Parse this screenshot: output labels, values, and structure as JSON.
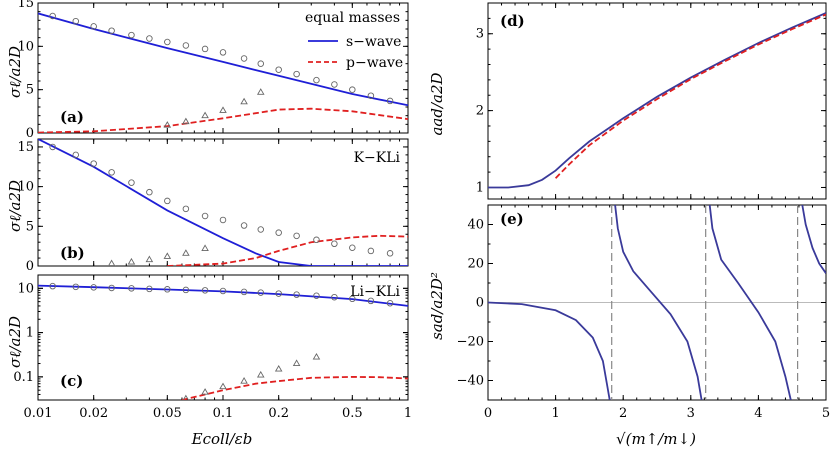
{
  "colors": {
    "swave": "#1f1fd6",
    "pwave": "#e02020",
    "panel_right": "#3a3a9a",
    "open_markers": "#666666",
    "asymptote": "#888888"
  },
  "legend": {
    "title": "equal masses",
    "s_label": "s−wave",
    "p_label": "p−wave"
  },
  "chart_data": [
    {
      "panel": "(a)",
      "type": "line",
      "annotation": "equal masses",
      "ylabel": "σℓ/a2D",
      "xscale": "log",
      "xlim": [
        0.01,
        1
      ],
      "ylim": [
        0,
        15
      ],
      "yticks": [
        "0",
        "5",
        "10",
        "15"
      ],
      "series": [
        {
          "name": "s−wave",
          "style": "solid",
          "x": [
            0.01,
            0.02,
            0.05,
            0.1,
            0.2,
            0.5,
            1.0
          ],
          "y": [
            13.8,
            12.0,
            9.8,
            8.2,
            6.6,
            4.5,
            3.2
          ]
        },
        {
          "name": "p−wave",
          "style": "dashed",
          "x": [
            0.01,
            0.02,
            0.05,
            0.1,
            0.2,
            0.3,
            0.5,
            1.0
          ],
          "y": [
            0.05,
            0.2,
            0.8,
            1.7,
            2.7,
            2.8,
            2.5,
            1.6
          ]
        },
        {
          "style": "circles",
          "x": [
            0.012,
            0.016,
            0.02,
            0.025,
            0.032,
            0.04,
            0.05,
            0.063,
            0.08,
            0.1,
            0.13,
            0.16,
            0.2,
            0.25,
            0.32,
            0.4,
            0.5,
            0.63,
            0.8
          ],
          "y": [
            13.5,
            12.9,
            12.3,
            11.8,
            11.3,
            10.9,
            10.5,
            10.1,
            9.7,
            9.3,
            8.6,
            8.0,
            7.3,
            6.8,
            6.1,
            5.6,
            5.0,
            4.3,
            3.7
          ]
        },
        {
          "style": "triangles",
          "x": [
            0.05,
            0.063,
            0.08,
            0.1,
            0.13,
            0.16
          ],
          "y": [
            0.9,
            1.3,
            2.0,
            2.6,
            3.6,
            4.7
          ]
        }
      ]
    },
    {
      "panel": "(b)",
      "type": "line",
      "annotation": "K−KLi",
      "ylabel": "σℓ/a2D",
      "xscale": "log",
      "xlim": [
        0.01,
        1
      ],
      "ylim": [
        0,
        16
      ],
      "yticks": [
        "0",
        "5",
        "10",
        "15"
      ],
      "series": [
        {
          "style": "solid",
          "x": [
            0.01,
            0.02,
            0.05,
            0.1,
            0.15,
            0.2,
            0.3,
            0.5,
            0.7,
            1.0
          ],
          "y": [
            16.0,
            12.5,
            7.0,
            3.5,
            1.6,
            0.5,
            0.0,
            0.0,
            0.0,
            0.0
          ]
        },
        {
          "style": "dashed",
          "x": [
            0.05,
            0.1,
            0.15,
            0.2,
            0.3,
            0.5,
            0.7,
            1.0
          ],
          "y": [
            0.0,
            0.3,
            1.0,
            1.9,
            3.0,
            3.6,
            3.8,
            3.7
          ]
        },
        {
          "style": "circles",
          "x": [
            0.012,
            0.016,
            0.02,
            0.025,
            0.032,
            0.04,
            0.05,
            0.063,
            0.08,
            0.1,
            0.13,
            0.16,
            0.2,
            0.25,
            0.32,
            0.4,
            0.5,
            0.63,
            0.8
          ],
          "y": [
            15.0,
            14.0,
            12.9,
            11.8,
            10.5,
            9.3,
            8.2,
            7.2,
            6.3,
            5.8,
            5.1,
            4.6,
            4.2,
            3.8,
            3.3,
            2.8,
            2.3,
            1.9,
            1.6
          ]
        },
        {
          "style": "triangles",
          "x": [
            0.025,
            0.032,
            0.04,
            0.05,
            0.063,
            0.08
          ],
          "y": [
            0.3,
            0.5,
            0.8,
            1.2,
            1.6,
            2.2
          ]
        }
      ]
    },
    {
      "panel": "(c)",
      "type": "line",
      "annotation": "Li−KLi",
      "ylabel": "σℓ/a2D",
      "xlabel": "Ecoll/εb",
      "xscale": "log",
      "yscale": "log",
      "xlim": [
        0.01,
        1
      ],
      "ylim": [
        0.03,
        20
      ],
      "xticks": [
        "0.01",
        "0.02",
        "0.05",
        "0.1",
        "0.2",
        "0.5",
        "1"
      ],
      "yticks": [
        "0.1",
        "1",
        "10"
      ],
      "series": [
        {
          "style": "solid",
          "x": [
            0.01,
            0.02,
            0.05,
            0.1,
            0.2,
            0.5,
            1.0
          ],
          "y": [
            11.5,
            10.6,
            9.4,
            8.5,
            7.4,
            5.7,
            4.0
          ]
        },
        {
          "style": "dashed",
          "x": [
            0.06,
            0.08,
            0.1,
            0.15,
            0.2,
            0.3,
            0.5,
            0.7,
            1.0
          ],
          "y": [
            0.03,
            0.04,
            0.05,
            0.07,
            0.08,
            0.095,
            0.1,
            0.098,
            0.092
          ]
        },
        {
          "style": "circles",
          "x": [
            0.012,
            0.016,
            0.02,
            0.025,
            0.032,
            0.04,
            0.05,
            0.063,
            0.08,
            0.1,
            0.13,
            0.16,
            0.2,
            0.25,
            0.32,
            0.4,
            0.5,
            0.63,
            0.8
          ],
          "y": [
            11.2,
            10.8,
            10.5,
            10.2,
            10.0,
            9.7,
            9.5,
            9.2,
            9.0,
            8.7,
            8.3,
            8.0,
            7.6,
            7.2,
            6.8,
            6.3,
            5.8,
            5.2,
            4.6
          ]
        },
        {
          "style": "triangles",
          "x": [
            0.063,
            0.08,
            0.1,
            0.13,
            0.16,
            0.2,
            0.25,
            0.32
          ],
          "y": [
            0.032,
            0.045,
            0.06,
            0.08,
            0.11,
            0.15,
            0.2,
            0.28
          ]
        }
      ]
    },
    {
      "panel": "(d)",
      "type": "line",
      "ylabel": "aad/a2D",
      "xlim": [
        0,
        5
      ],
      "ylim": [
        0.85,
        3.4
      ],
      "yticks": [
        "1",
        "2",
        "3"
      ],
      "series": [
        {
          "style": "solid",
          "x": [
            0,
            0.3,
            0.6,
            0.8,
            1.0,
            1.2,
            1.5,
            2.0,
            2.5,
            3.0,
            3.5,
            4.0,
            4.5,
            5.0
          ],
          "y": [
            1.0,
            1.0,
            1.03,
            1.1,
            1.22,
            1.38,
            1.6,
            1.9,
            2.18,
            2.43,
            2.66,
            2.88,
            3.08,
            3.27
          ]
        },
        {
          "style": "dashed",
          "x": [
            1.0,
            1.2,
            1.5,
            2.0,
            2.5,
            3.0,
            3.5,
            4.0,
            4.5,
            5.0
          ],
          "y": [
            1.12,
            1.3,
            1.55,
            1.87,
            2.15,
            2.41,
            2.64,
            2.86,
            3.06,
            3.25
          ]
        }
      ]
    },
    {
      "panel": "(e)",
      "type": "line",
      "ylabel": "sad/a2D²",
      "xlabel": "√(m↑/m↓)",
      "xlim": [
        0,
        5
      ],
      "ylim": [
        -50,
        50
      ],
      "xticks": [
        "0",
        "1",
        "2",
        "3",
        "4",
        "5"
      ],
      "yticks": [
        "−40",
        "−20",
        "0",
        "20",
        "40"
      ],
      "asymptotes": [
        1.83,
        3.22,
        4.58
      ],
      "series": [
        {
          "style": "solid",
          "x": [
            0,
            0.5,
            1.0,
            1.3,
            1.55,
            1.7,
            1.76,
            1.8
          ],
          "y": [
            0,
            -0.8,
            -4,
            -9,
            -18,
            -30,
            -42,
            -50
          ]
        },
        {
          "style": "solid",
          "x": [
            1.88,
            1.92,
            2.0,
            2.15,
            2.4,
            2.7,
            2.95,
            3.1,
            3.16
          ],
          "y": [
            50,
            38,
            26,
            16,
            6,
            -6,
            -20,
            -38,
            -50
          ]
        },
        {
          "style": "solid",
          "x": [
            3.28,
            3.32,
            3.45,
            3.7,
            4.0,
            4.25,
            4.4,
            4.48
          ],
          "y": [
            50,
            38,
            22,
            10,
            -5,
            -20,
            -38,
            -50
          ]
        },
        {
          "style": "solid",
          "x": [
            4.65,
            4.7,
            4.8,
            4.9,
            5.0
          ],
          "y": [
            50,
            40,
            28,
            20,
            15
          ]
        }
      ]
    }
  ]
}
